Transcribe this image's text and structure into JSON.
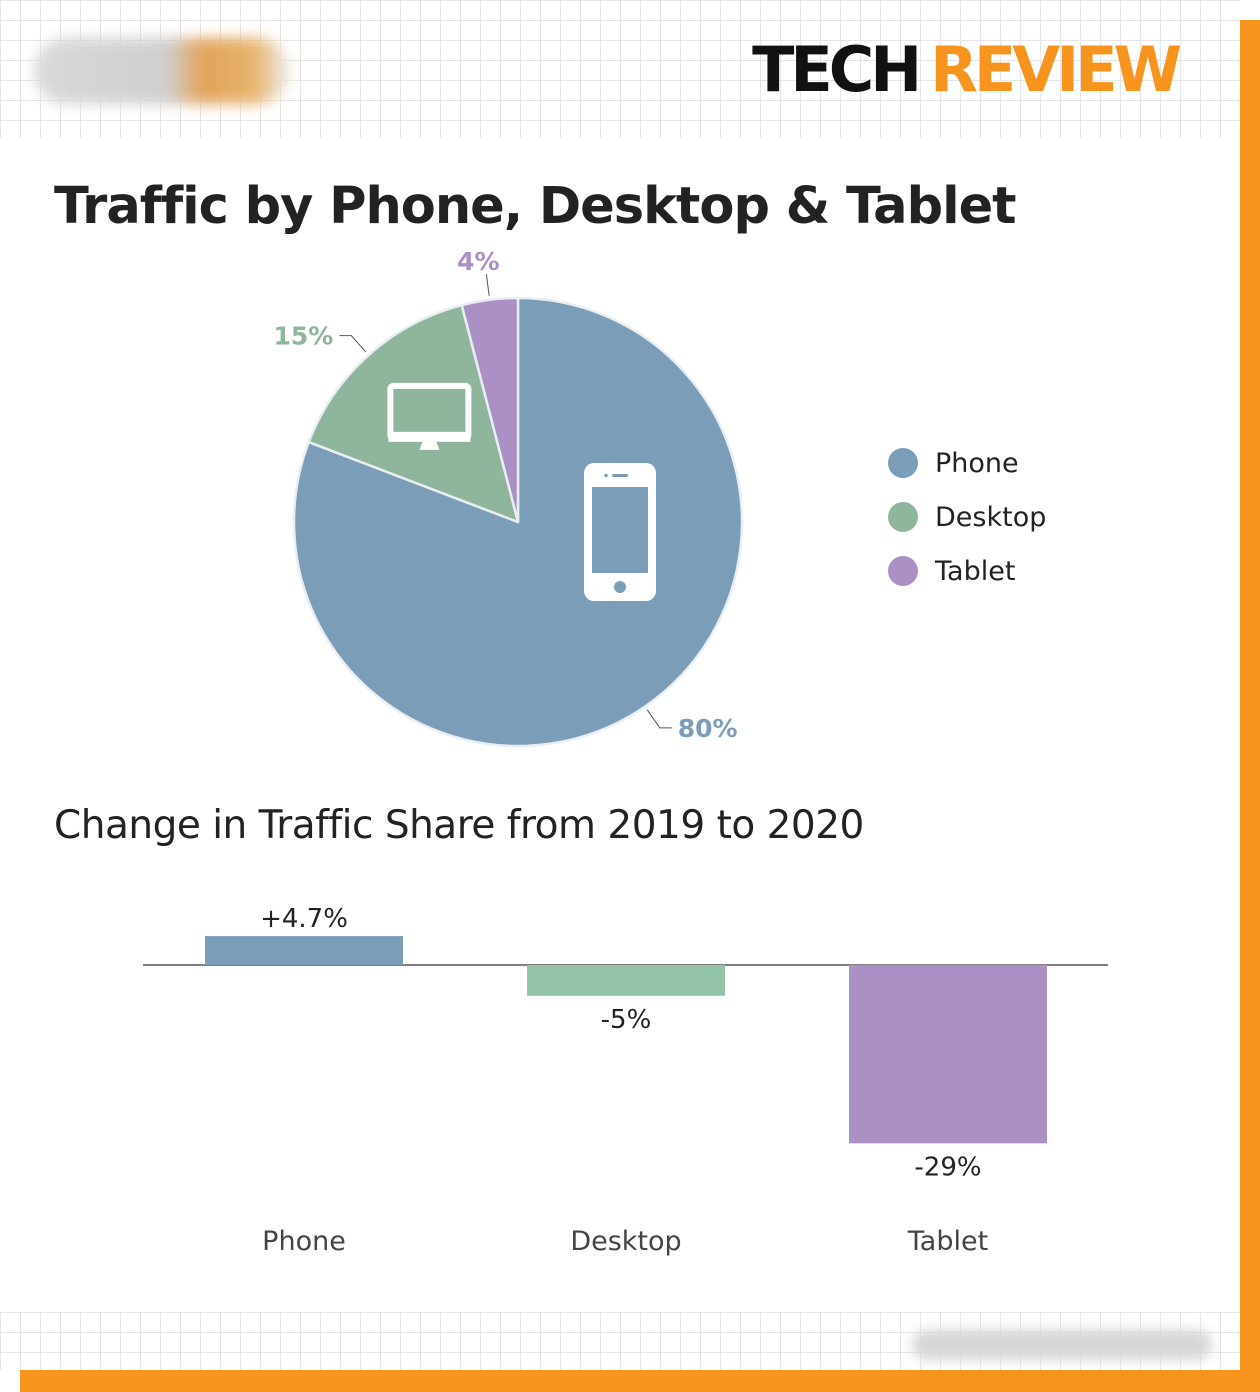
{
  "brand": {
    "word1": "TECH",
    "word2": "REVIEW"
  },
  "colors": {
    "accent": "#f7941d",
    "phone": "#7b9db7",
    "desktop": "#8fb59d",
    "tablet": "#ab90c6",
    "desktop_bar": "#93c4aa"
  },
  "icons": {
    "desktop": "desktop-monitor-icon",
    "phone": "smartphone-icon"
  },
  "chart_data": [
    {
      "type": "pie",
      "title": "Traffic by Phone, Desktop & Tablet",
      "slices": [
        {
          "label": "Phone",
          "value": 80,
          "value_label": "80%",
          "color": "#7b9db7"
        },
        {
          "label": "Desktop",
          "value": 15,
          "value_label": "15%",
          "color": "#8fb59d"
        },
        {
          "label": "Tablet",
          "value": 4,
          "value_label": "4%",
          "color": "#ab90c6"
        }
      ],
      "legend": {
        "position": "right",
        "entries": [
          "Phone",
          "Desktop",
          "Tablet"
        ]
      }
    },
    {
      "type": "bar",
      "title": "Change in Traffic Share from 2019 to 2020",
      "categories": [
        "Phone",
        "Desktop",
        "Tablet"
      ],
      "values": [
        4.7,
        -5,
        -29
      ],
      "value_labels": [
        "+4.7%",
        "-5%",
        "-29%"
      ],
      "colors": [
        "#7b9db7",
        "#93c4aa",
        "#ab90c6"
      ],
      "ylim": [
        -30,
        5
      ],
      "grid": false
    }
  ]
}
